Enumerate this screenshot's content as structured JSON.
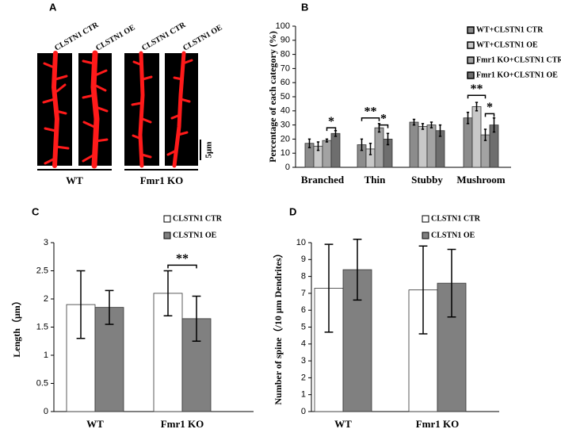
{
  "panel_a": {
    "label": "A",
    "column_labels": [
      "CLSTN1 CTR",
      "CLSTN1 OE",
      "CLSTN1 CTR",
      "CLSTN1 OE"
    ],
    "group_labels": [
      "WT",
      "Fmr1 KO"
    ],
    "scale_bar": "5μm"
  },
  "chart_data": [
    {
      "type": "bar",
      "label": "B",
      "y_label": "Percentage of each category (%)",
      "categories": [
        "Branched",
        "Thin",
        "Stubby",
        "Mushroom"
      ],
      "series": [
        {
          "name": "WT+CLSTN1 CTR",
          "color": "#8c8c8c",
          "values": [
            17,
            16,
            32,
            35
          ],
          "errors": [
            3,
            4,
            2,
            4
          ]
        },
        {
          "name": "WT+CLSTN1 OE",
          "color": "#c8c8c8",
          "values": [
            15,
            13,
            29,
            43
          ],
          "errors": [
            3,
            4,
            2,
            3
          ]
        },
        {
          "name": "Fmr1 KO+CLSTN1 CTR",
          "color": "#a3a3a3",
          "values": [
            19,
            28,
            30,
            23
          ],
          "errors": [
            1,
            3,
            2,
            4
          ]
        },
        {
          "name": "Fmr1 KO+CLSTN1 OE",
          "color": "#6e6e6e",
          "values": [
            24,
            20,
            26,
            30
          ],
          "errors": [
            2,
            4,
            4,
            5
          ]
        }
      ],
      "ylim": [
        0,
        100
      ],
      "yticks": [
        0,
        10,
        20,
        30,
        40,
        50,
        60,
        70,
        80,
        90,
        100
      ],
      "annotations": [
        "*",
        "**",
        "*",
        "**",
        "*"
      ]
    },
    {
      "type": "bar",
      "label": "C",
      "y_label": "Length（μm）",
      "categories": [
        "WT",
        "Fmr1 KO"
      ],
      "series": [
        {
          "name": "CLSTN1 CTR",
          "color": "#ffffff",
          "values": [
            1.9,
            2.1
          ],
          "errors": [
            0.6,
            0.4
          ]
        },
        {
          "name": "CLSTN1 OE",
          "color": "#808080",
          "values": [
            1.85,
            1.65
          ],
          "errors": [
            0.3,
            0.4
          ]
        }
      ],
      "ylim": [
        0,
        3
      ],
      "yticks": [
        0,
        0.5,
        1,
        1.5,
        2,
        2.5,
        3
      ],
      "annotations": [
        "**"
      ]
    },
    {
      "type": "bar",
      "label": "D",
      "y_label": "Number of spine（/10 μm Dendrites）",
      "categories": [
        "WT",
        "Fmr1 KO"
      ],
      "series": [
        {
          "name": "CLSTN1 CTR",
          "color": "#ffffff",
          "values": [
            7.3,
            7.2
          ],
          "errors": [
            2.6,
            2.6
          ]
        },
        {
          "name": "CLSTN1 OE",
          "color": "#808080",
          "values": [
            8.4,
            7.6
          ],
          "errors": [
            1.8,
            2.0
          ]
        }
      ],
      "ylim": [
        0,
        10
      ],
      "yticks": [
        0,
        1,
        2,
        3,
        4,
        5,
        6,
        7,
        8,
        9,
        10
      ]
    }
  ]
}
